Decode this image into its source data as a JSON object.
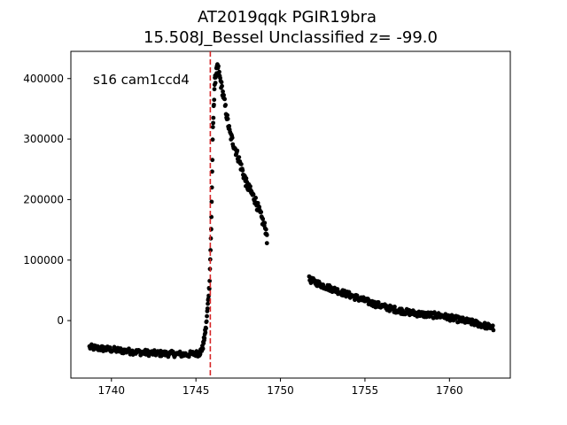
{
  "chart_data": {
    "type": "scatter",
    "title_line1": "AT2019qqk  PGIR19bra",
    "title_line2": "15.508J_Bessel Unclassified z= -99.0",
    "annotation": "s16 cam1ccd4",
    "xlabel": "",
    "ylabel": "",
    "xlim": [
      1737.6,
      1763.6
    ],
    "ylim": [
      -95000,
      445000
    ],
    "x_ticks": [
      1740,
      1745,
      1750,
      1755,
      1760
    ],
    "x_tick_labels": [
      "1740",
      "1745",
      "1750",
      "1755",
      "1760"
    ],
    "y_ticks": [
      0,
      100000,
      200000,
      300000,
      400000
    ],
    "y_tick_labels": [
      "0",
      "100000",
      "200000",
      "300000",
      "400000"
    ],
    "vline": {
      "x": 1745.85,
      "color": "#d62728",
      "style": "dashed"
    },
    "grid": false,
    "marker_color": "#000000",
    "series": [
      {
        "segments": [
          {
            "x_start": 1738.7,
            "x_end": 1745.2,
            "n": 160,
            "points": [
              [
                1738.7,
                -44000
              ],
              [
                1740.0,
                -48000
              ],
              [
                1741.5,
                -52000
              ],
              [
                1742.5,
                -54000
              ],
              [
                1743.5,
                -55000
              ],
              [
                1744.5,
                -56000
              ],
              [
                1745.2,
                -54000
              ]
            ]
          },
          {
            "x_start": 1745.2,
            "x_end": 1745.9,
            "n": 40,
            "points": [
              [
                1745.2,
                -54000
              ],
              [
                1745.4,
                -45000
              ],
              [
                1745.6,
                -10000
              ],
              [
                1745.8,
                60000
              ],
              [
                1745.9,
                150000
              ]
            ]
          },
          {
            "x_start": 1745.9,
            "x_end": 1746.3,
            "n": 28,
            "points": [
              [
                1745.9,
                150000
              ],
              [
                1746.0,
                310000
              ],
              [
                1746.1,
                390000
              ],
              [
                1746.2,
                410000
              ],
              [
                1746.3,
                418000
              ]
            ]
          },
          {
            "x_start": 1746.3,
            "x_end": 1749.2,
            "n": 110,
            "points": [
              [
                1746.3,
                418000
              ],
              [
                1746.6,
                375000
              ],
              [
                1747.0,
                310000
              ],
              [
                1747.5,
                270000
              ],
              [
                1748.0,
                225000
              ],
              [
                1748.5,
                200000
              ],
              [
                1749.0,
                160000
              ],
              [
                1749.2,
                145000
              ]
            ]
          },
          {
            "x_start": 1751.7,
            "x_end": 1762.6,
            "n": 320,
            "points": [
              [
                1751.7,
                68000
              ],
              [
                1752.5,
                58000
              ],
              [
                1753.5,
                48000
              ],
              [
                1754.5,
                38000
              ],
              [
                1755.5,
                28000
              ],
              [
                1756.5,
                20000
              ],
              [
                1757.5,
                14000
              ],
              [
                1758.5,
                10000
              ],
              [
                1759.5,
                8000
              ],
              [
                1760.5,
                2000
              ],
              [
                1761.5,
                -4000
              ],
              [
                1762.6,
                -12000
              ]
            ]
          }
        ],
        "extra_points": [
          [
            1749.2,
            128000
          ]
        ]
      }
    ]
  }
}
